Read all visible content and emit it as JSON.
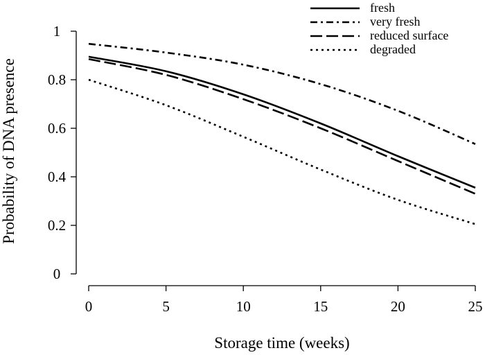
{
  "chart_data": {
    "type": "line",
    "title": "",
    "xlabel": "Storage time (weeks)",
    "ylabel": "Probability of DNA presence",
    "xlim": [
      0,
      25
    ],
    "ylim": [
      0,
      1
    ],
    "xticks": [
      0,
      5,
      10,
      15,
      20,
      25
    ],
    "yticks": [
      0,
      0.2,
      0.4,
      0.6,
      0.8,
      1
    ],
    "xtick_labels": [
      "0",
      "5",
      "10",
      "15",
      "20",
      "25"
    ],
    "ytick_labels": [
      "0",
      "0.2",
      "0.4",
      "0.6",
      "0.8",
      "1"
    ],
    "grid": false,
    "legend_position": "top-right",
    "x": [
      0,
      5,
      10,
      15,
      20,
      25
    ],
    "series": [
      {
        "name": "fresh",
        "style": "solid",
        "values": [
          0.895,
          0.835,
          0.74,
          0.62,
          0.485,
          0.355
        ]
      },
      {
        "name": "very fresh",
        "style": "dashdot",
        "values": [
          0.948,
          0.912,
          0.862,
          0.782,
          0.672,
          0.535
        ]
      },
      {
        "name": "reduced surface",
        "style": "longdash",
        "values": [
          0.885,
          0.82,
          0.72,
          0.6,
          0.465,
          0.33
        ]
      },
      {
        "name": "degraded",
        "style": "dotted",
        "values": [
          0.8,
          0.695,
          0.565,
          0.43,
          0.305,
          0.205
        ]
      }
    ],
    "line_color": "#000000"
  }
}
